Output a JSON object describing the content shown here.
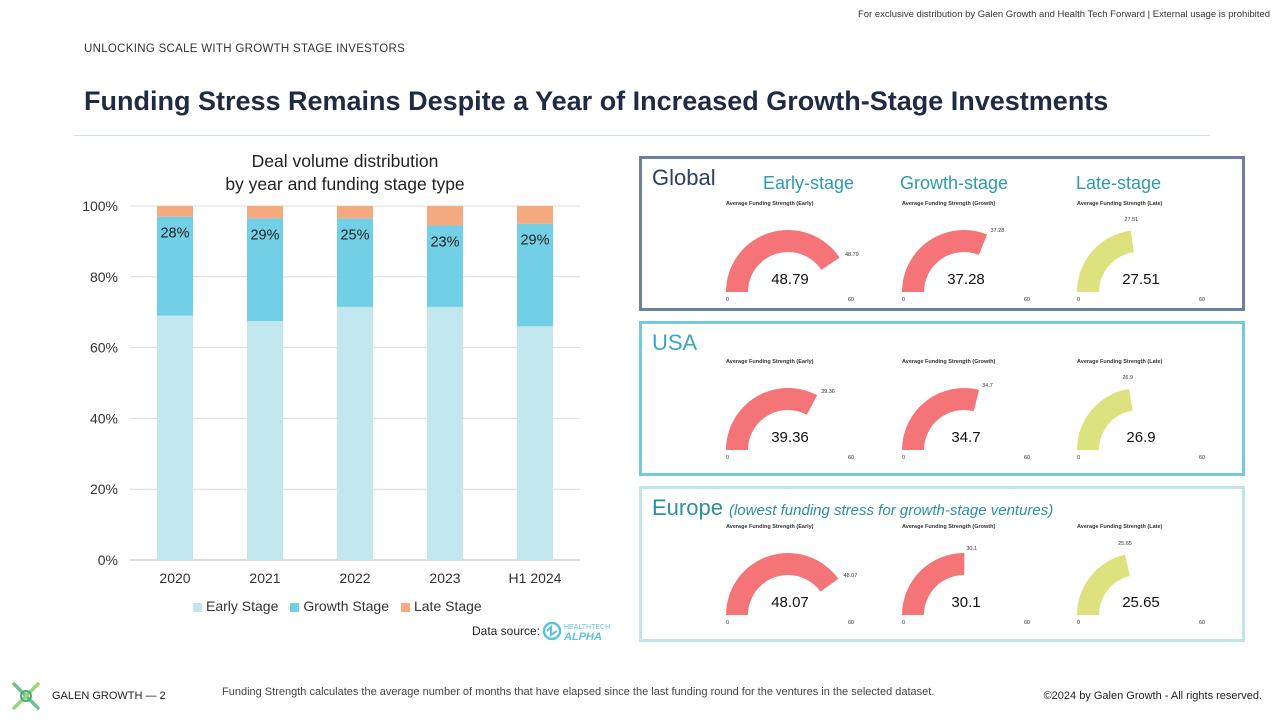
{
  "header": {
    "disclaimer": "For exclusive distribution by Galen Growth and Health Tech Forward | External usage is prohibited",
    "section": "UNLOCKING SCALE WITH GROWTH STAGE INVESTORS",
    "title": "Funding Stress Remains Despite a Year of Increased Growth-Stage Investments"
  },
  "chart_data": {
    "type": "bar",
    "stacked": true,
    "title_line1": "Deal volume distribution",
    "title_line2": "by year and funding stage type",
    "categories": [
      "2020",
      "2021",
      "2022",
      "2023",
      "H1 2024"
    ],
    "ylim": [
      0,
      100
    ],
    "y_ticks": [
      "0%",
      "20%",
      "40%",
      "60%",
      "80%",
      "100%"
    ],
    "grid": true,
    "legend_position": "bottom",
    "series": [
      {
        "name": "Early Stage",
        "color": "#c2e7ef",
        "values": [
          69,
          67.5,
          71.5,
          71.5,
          66
        ]
      },
      {
        "name": "Growth Stage",
        "color": "#72d0e6",
        "values": [
          28,
          29,
          25,
          23,
          29
        ],
        "labels": [
          "28%",
          "29%",
          "25%",
          "23%",
          "29%"
        ]
      },
      {
        "name": "Late Stage",
        "color": "#f4a97f",
        "values": [
          3,
          3.5,
          3.5,
          5.5,
          5
        ]
      }
    ]
  },
  "data_source": {
    "label": "Data source:",
    "logo_text_1": "HEALTHTECH",
    "logo_text_2": "ALPHA"
  },
  "panels": {
    "column_titles": [
      "Early-stage",
      "Growth-stage",
      "Late-stage"
    ],
    "gauge_titles": [
      "Average Funding Strength (Early)",
      "Average Funding Strength (Growth)",
      "Average Funding Strength (Late)"
    ],
    "gauge_min": "0",
    "gauge_max": "60",
    "colors": {
      "early": "#f47478",
      "growth": "#f47478",
      "late": "#dee27e"
    },
    "global": {
      "title": "Global",
      "values": [
        "48.79",
        "37.28",
        "27.51"
      ],
      "border": "#6b7fa0"
    },
    "usa": {
      "title": "USA",
      "values": [
        "39.36",
        "34.7",
        "26.9"
      ],
      "border": "#72cadf"
    },
    "europe": {
      "title": "Europe",
      "subtitle": "(lowest funding stress for growth-stage ventures)",
      "values": [
        "48.07",
        "30.1",
        "25.65"
      ],
      "border": "#bfe6ec"
    }
  },
  "footer": {
    "brand": "GALEN GROWTH  —  2",
    "note": "Funding Strength calculates the average number of months that have elapsed since the last funding round for the ventures in the selected dataset.",
    "copyright": "©2024 by Galen Growth  - All rights reserved."
  }
}
